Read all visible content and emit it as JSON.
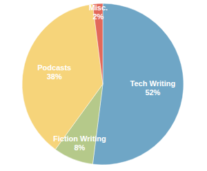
{
  "chart_data": {
    "type": "pie",
    "categories": [
      "Tech Writing",
      "Fiction Writing",
      "Podcasts",
      "Misc."
    ],
    "values": [
      52,
      8,
      38,
      2
    ],
    "value_labels": [
      "52%",
      "8%",
      "38%",
      "2%"
    ],
    "colors": [
      "#6fa6c6",
      "#b5c98a",
      "#f6d47a",
      "#e2685a"
    ],
    "data_labels": true
  }
}
